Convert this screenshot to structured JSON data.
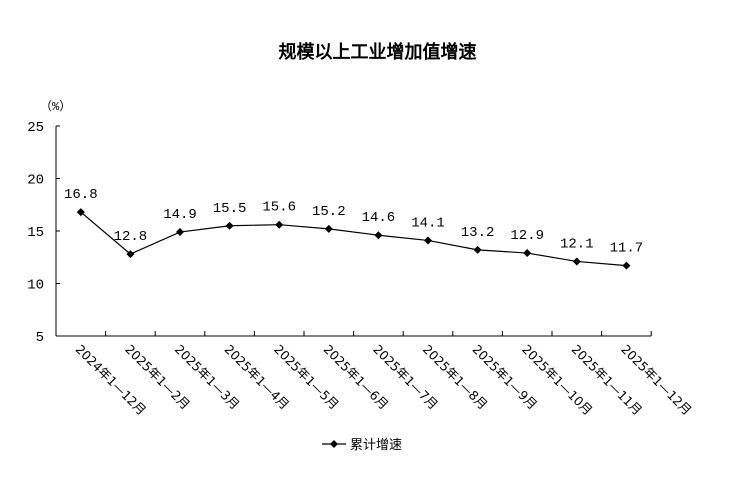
{
  "chart_data": {
    "type": "line",
    "title": "规模以上工业增加值增速",
    "ylabel": "（%）",
    "xlabel": "",
    "ylim": [
      5,
      25
    ],
    "yticks": [
      5,
      10,
      15,
      20,
      25
    ],
    "grid": false,
    "legend_position": "bottom-center",
    "categories": [
      "2024年1—12月",
      "2025年1—2月",
      "2025年1—3月",
      "2025年1—4月",
      "2025年1—5月",
      "2025年1—6月",
      "2025年1—7月",
      "2025年1—8月",
      "2025年1—9月",
      "2025年1—10月",
      "2025年1—11月",
      "2025年1—12月"
    ],
    "series": [
      {
        "name": "累计增速",
        "values": [
          16.8,
          12.8,
          14.9,
          15.5,
          15.6,
          15.2,
          14.6,
          14.1,
          13.2,
          12.9,
          12.1,
          11.7
        ],
        "color": "#000000"
      }
    ]
  }
}
